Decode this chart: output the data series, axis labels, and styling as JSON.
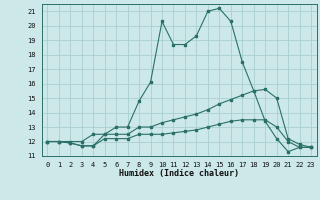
{
  "xlabel": "Humidex (Indice chaleur)",
  "x": [
    0,
    1,
    2,
    3,
    4,
    5,
    6,
    7,
    8,
    9,
    10,
    11,
    12,
    13,
    14,
    15,
    16,
    17,
    18,
    19,
    20,
    21,
    22,
    23
  ],
  "line1": [
    12,
    12,
    12,
    12,
    12.5,
    12.5,
    13,
    13,
    14.8,
    16.1,
    20.3,
    18.7,
    18.7,
    19.3,
    21.0,
    21.2,
    20.3,
    17.5,
    15.5,
    13.4,
    12.2,
    11.3,
    11.6,
    11.6
  ],
  "line2": [
    12,
    12,
    11.9,
    11.7,
    11.7,
    12.5,
    12.5,
    12.5,
    13.0,
    13.0,
    13.3,
    13.5,
    13.7,
    13.9,
    14.2,
    14.6,
    14.9,
    15.2,
    15.5,
    15.6,
    15.0,
    12.2,
    11.8,
    11.6
  ],
  "line3": [
    12,
    12,
    11.9,
    11.7,
    11.7,
    12.2,
    12.2,
    12.2,
    12.5,
    12.5,
    12.5,
    12.6,
    12.7,
    12.8,
    13.0,
    13.2,
    13.4,
    13.5,
    13.5,
    13.5,
    13.0,
    12.0,
    11.6,
    11.6
  ],
  "line_color": "#2a7068",
  "bg_color": "#cce8e8",
  "grid_color": "#aacfcf",
  "ylim": [
    11,
    21.5
  ],
  "xlim": [
    -0.5,
    23.5
  ],
  "yticks": [
    11,
    12,
    13,
    14,
    15,
    16,
    17,
    18,
    19,
    20,
    21
  ],
  "xticks": [
    0,
    1,
    2,
    3,
    4,
    5,
    6,
    7,
    8,
    9,
    10,
    11,
    12,
    13,
    14,
    15,
    16,
    17,
    18,
    19,
    20,
    21,
    22,
    23
  ],
  "tick_fontsize": 5.0,
  "label_fontsize": 6.0
}
